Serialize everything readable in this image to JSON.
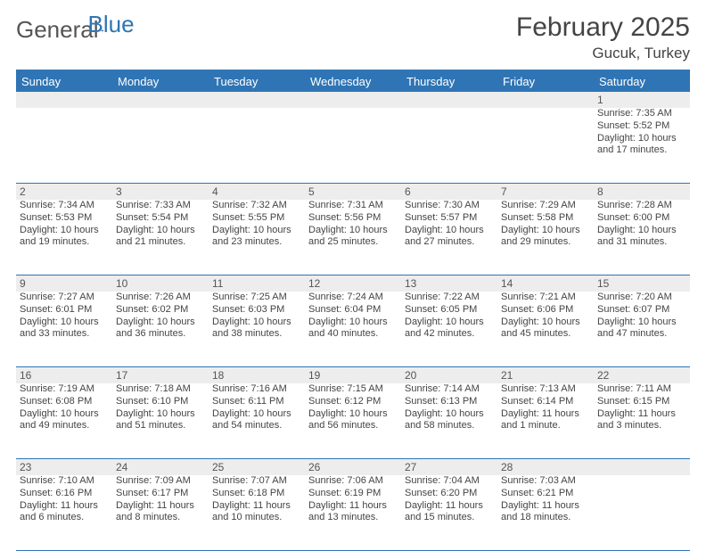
{
  "logo": {
    "text1": "General",
    "text2": "Blue"
  },
  "title": "February 2025",
  "location": "Gucuk, Turkey",
  "colors": {
    "header_bg": "#2f75b5",
    "daynum_bg": "#ededed",
    "text": "#444444",
    "background": "#ffffff"
  },
  "day_headers": [
    "Sunday",
    "Monday",
    "Tuesday",
    "Wednesday",
    "Thursday",
    "Friday",
    "Saturday"
  ],
  "weeks": [
    [
      {
        "n": "",
        "sunrise": "",
        "sunset": "",
        "daylight": ""
      },
      {
        "n": "",
        "sunrise": "",
        "sunset": "",
        "daylight": ""
      },
      {
        "n": "",
        "sunrise": "",
        "sunset": "",
        "daylight": ""
      },
      {
        "n": "",
        "sunrise": "",
        "sunset": "",
        "daylight": ""
      },
      {
        "n": "",
        "sunrise": "",
        "sunset": "",
        "daylight": ""
      },
      {
        "n": "",
        "sunrise": "",
        "sunset": "",
        "daylight": ""
      },
      {
        "n": "1",
        "sunrise": "Sunrise: 7:35 AM",
        "sunset": "Sunset: 5:52 PM",
        "daylight": "Daylight: 10 hours and 17 minutes."
      }
    ],
    [
      {
        "n": "2",
        "sunrise": "Sunrise: 7:34 AM",
        "sunset": "Sunset: 5:53 PM",
        "daylight": "Daylight: 10 hours and 19 minutes."
      },
      {
        "n": "3",
        "sunrise": "Sunrise: 7:33 AM",
        "sunset": "Sunset: 5:54 PM",
        "daylight": "Daylight: 10 hours and 21 minutes."
      },
      {
        "n": "4",
        "sunrise": "Sunrise: 7:32 AM",
        "sunset": "Sunset: 5:55 PM",
        "daylight": "Daylight: 10 hours and 23 minutes."
      },
      {
        "n": "5",
        "sunrise": "Sunrise: 7:31 AM",
        "sunset": "Sunset: 5:56 PM",
        "daylight": "Daylight: 10 hours and 25 minutes."
      },
      {
        "n": "6",
        "sunrise": "Sunrise: 7:30 AM",
        "sunset": "Sunset: 5:57 PM",
        "daylight": "Daylight: 10 hours and 27 minutes."
      },
      {
        "n": "7",
        "sunrise": "Sunrise: 7:29 AM",
        "sunset": "Sunset: 5:58 PM",
        "daylight": "Daylight: 10 hours and 29 minutes."
      },
      {
        "n": "8",
        "sunrise": "Sunrise: 7:28 AM",
        "sunset": "Sunset: 6:00 PM",
        "daylight": "Daylight: 10 hours and 31 minutes."
      }
    ],
    [
      {
        "n": "9",
        "sunrise": "Sunrise: 7:27 AM",
        "sunset": "Sunset: 6:01 PM",
        "daylight": "Daylight: 10 hours and 33 minutes."
      },
      {
        "n": "10",
        "sunrise": "Sunrise: 7:26 AM",
        "sunset": "Sunset: 6:02 PM",
        "daylight": "Daylight: 10 hours and 36 minutes."
      },
      {
        "n": "11",
        "sunrise": "Sunrise: 7:25 AM",
        "sunset": "Sunset: 6:03 PM",
        "daylight": "Daylight: 10 hours and 38 minutes."
      },
      {
        "n": "12",
        "sunrise": "Sunrise: 7:24 AM",
        "sunset": "Sunset: 6:04 PM",
        "daylight": "Daylight: 10 hours and 40 minutes."
      },
      {
        "n": "13",
        "sunrise": "Sunrise: 7:22 AM",
        "sunset": "Sunset: 6:05 PM",
        "daylight": "Daylight: 10 hours and 42 minutes."
      },
      {
        "n": "14",
        "sunrise": "Sunrise: 7:21 AM",
        "sunset": "Sunset: 6:06 PM",
        "daylight": "Daylight: 10 hours and 45 minutes."
      },
      {
        "n": "15",
        "sunrise": "Sunrise: 7:20 AM",
        "sunset": "Sunset: 6:07 PM",
        "daylight": "Daylight: 10 hours and 47 minutes."
      }
    ],
    [
      {
        "n": "16",
        "sunrise": "Sunrise: 7:19 AM",
        "sunset": "Sunset: 6:08 PM",
        "daylight": "Daylight: 10 hours and 49 minutes."
      },
      {
        "n": "17",
        "sunrise": "Sunrise: 7:18 AM",
        "sunset": "Sunset: 6:10 PM",
        "daylight": "Daylight: 10 hours and 51 minutes."
      },
      {
        "n": "18",
        "sunrise": "Sunrise: 7:16 AM",
        "sunset": "Sunset: 6:11 PM",
        "daylight": "Daylight: 10 hours and 54 minutes."
      },
      {
        "n": "19",
        "sunrise": "Sunrise: 7:15 AM",
        "sunset": "Sunset: 6:12 PM",
        "daylight": "Daylight: 10 hours and 56 minutes."
      },
      {
        "n": "20",
        "sunrise": "Sunrise: 7:14 AM",
        "sunset": "Sunset: 6:13 PM",
        "daylight": "Daylight: 10 hours and 58 minutes."
      },
      {
        "n": "21",
        "sunrise": "Sunrise: 7:13 AM",
        "sunset": "Sunset: 6:14 PM",
        "daylight": "Daylight: 11 hours and 1 minute."
      },
      {
        "n": "22",
        "sunrise": "Sunrise: 7:11 AM",
        "sunset": "Sunset: 6:15 PM",
        "daylight": "Daylight: 11 hours and 3 minutes."
      }
    ],
    [
      {
        "n": "23",
        "sunrise": "Sunrise: 7:10 AM",
        "sunset": "Sunset: 6:16 PM",
        "daylight": "Daylight: 11 hours and 6 minutes."
      },
      {
        "n": "24",
        "sunrise": "Sunrise: 7:09 AM",
        "sunset": "Sunset: 6:17 PM",
        "daylight": "Daylight: 11 hours and 8 minutes."
      },
      {
        "n": "25",
        "sunrise": "Sunrise: 7:07 AM",
        "sunset": "Sunset: 6:18 PM",
        "daylight": "Daylight: 11 hours and 10 minutes."
      },
      {
        "n": "26",
        "sunrise": "Sunrise: 7:06 AM",
        "sunset": "Sunset: 6:19 PM",
        "daylight": "Daylight: 11 hours and 13 minutes."
      },
      {
        "n": "27",
        "sunrise": "Sunrise: 7:04 AM",
        "sunset": "Sunset: 6:20 PM",
        "daylight": "Daylight: 11 hours and 15 minutes."
      },
      {
        "n": "28",
        "sunrise": "Sunrise: 7:03 AM",
        "sunset": "Sunset: 6:21 PM",
        "daylight": "Daylight: 11 hours and 18 minutes."
      },
      {
        "n": "",
        "sunrise": "",
        "sunset": "",
        "daylight": ""
      }
    ]
  ]
}
